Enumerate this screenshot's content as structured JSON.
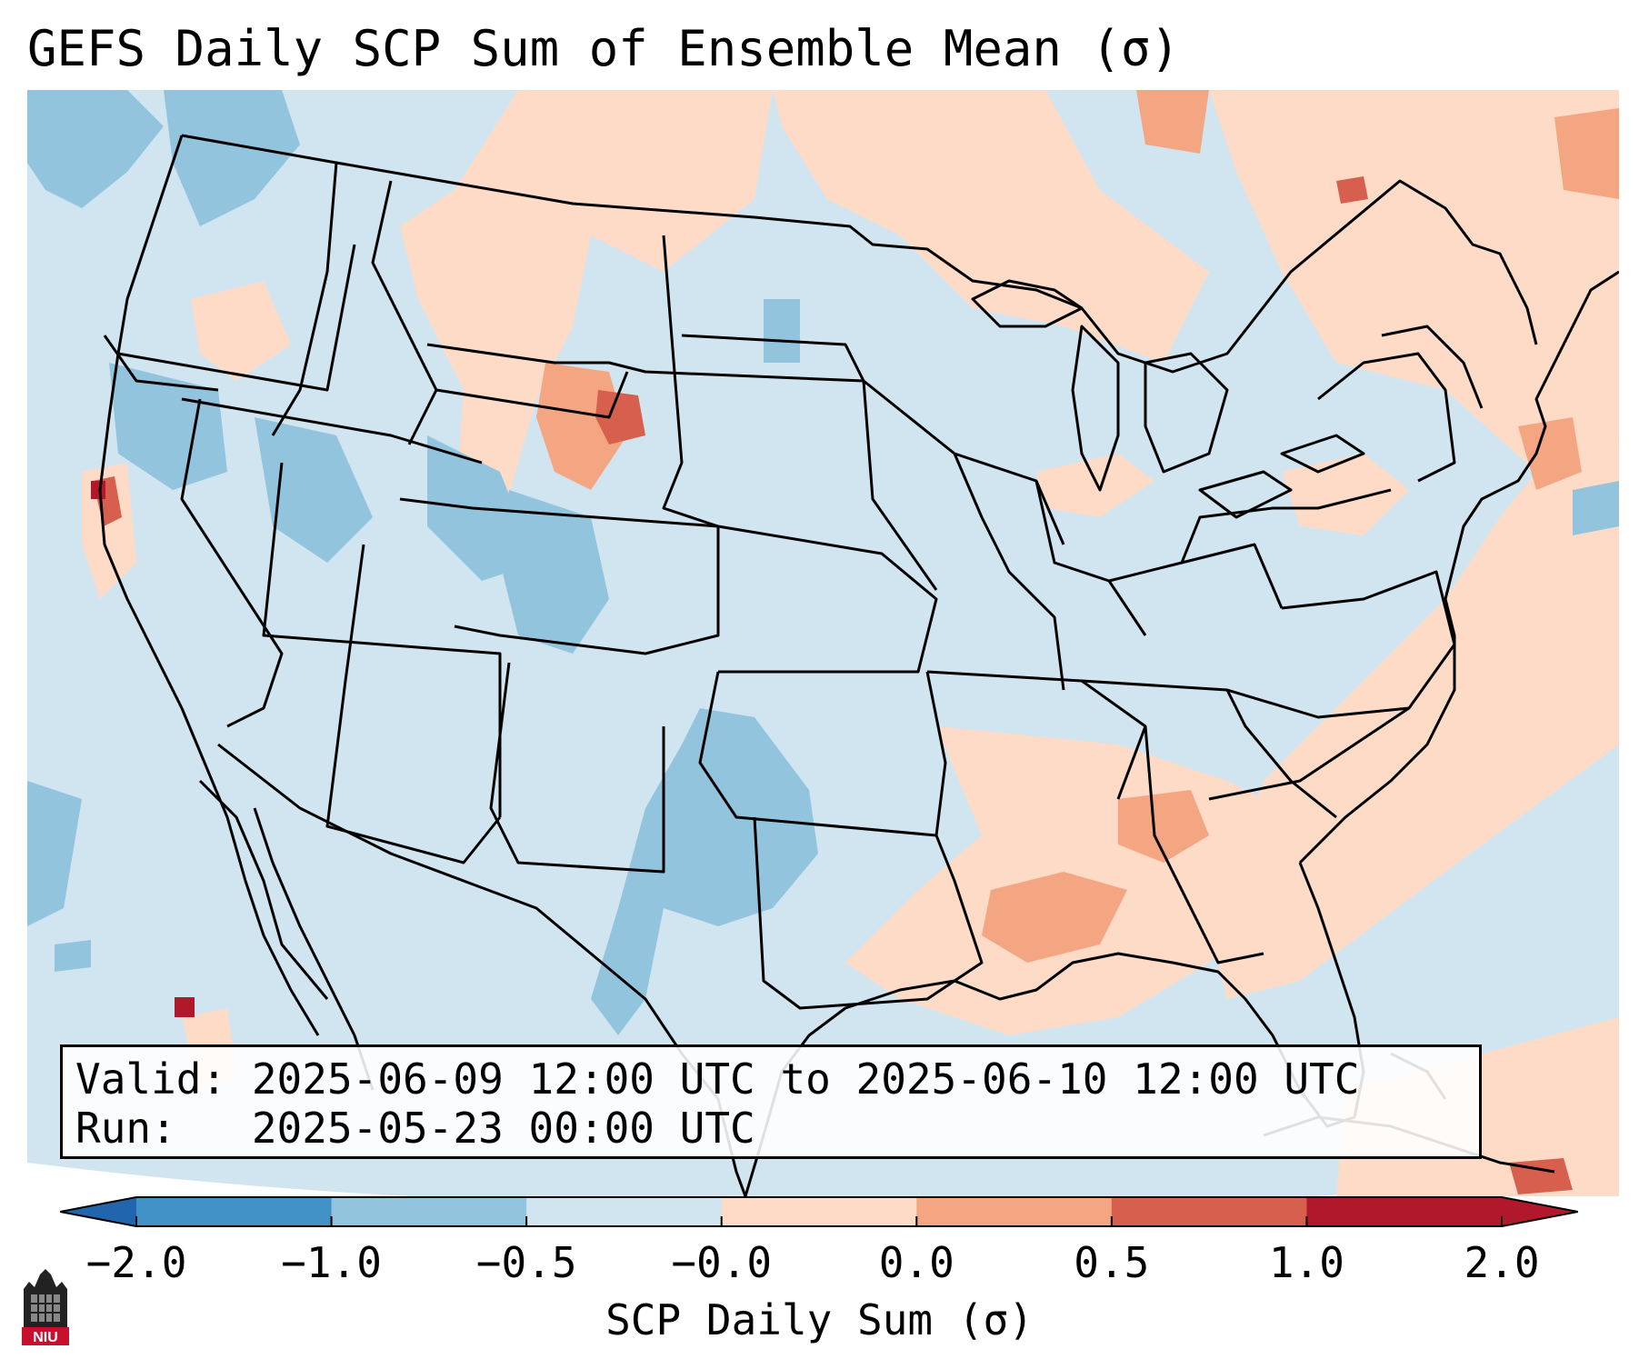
{
  "title": "GEFS Daily SCP Sum of Ensemble Mean (σ)",
  "info": {
    "valid_line": "Valid: 2025-06-09 12:00 UTC to 2025-06-10 12:00 UTC",
    "run_line": "Run:   2025-05-23 00:00 UTC"
  },
  "colorbar": {
    "label": "SCP Daily Sum (σ)",
    "ticks": [
      "−2.0",
      "−1.0",
      "−0.5",
      "−0.0",
      "0.0",
      "0.5",
      "1.0",
      "2.0"
    ],
    "colors": [
      "#2f6fb4",
      "#4392c7",
      "#92c4de",
      "#d1e5f0",
      "#fddbc7",
      "#f4a582",
      "#d6604d",
      "#b2182b"
    ],
    "under_color": "#2166ac",
    "over_color": "#b2182b"
  },
  "map": {
    "background_color": "#d1e5f0",
    "features": [
      "country-borders",
      "state-borders",
      "coastlines"
    ],
    "anomaly_regions": [
      {
        "name": "northern-plains-dakotas-wyoming",
        "level": "0.0 to 0.5"
      },
      {
        "name": "wyoming-colorado-front-range",
        "level": "0.5 to 1.0"
      },
      {
        "name": "ontario-quebec",
        "level": "0.0 to 0.5"
      },
      {
        "name": "gulf-coast-southeast",
        "level": "0.0 to 1.0"
      },
      {
        "name": "northern-california-coast",
        "level": "1.0 to 2.0"
      },
      {
        "name": "great-basin-rockies",
        "level": "-1.0 to -0.5"
      },
      {
        "name": "west-texas",
        "level": "-1.0 to -0.5"
      }
    ]
  },
  "logo": {
    "text": "NIU"
  }
}
